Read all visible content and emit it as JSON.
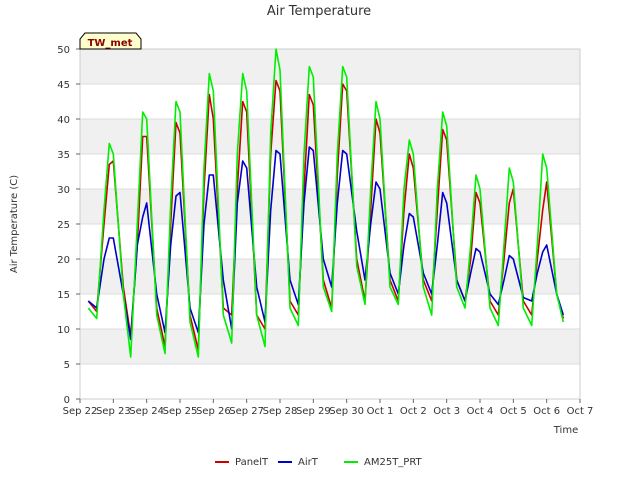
{
  "chart_data": {
    "type": "line",
    "title": "Air Temperature",
    "xlabel": "Time",
    "ylabel": "Air Temperature (C)",
    "badge": "TW_met",
    "ylim": [
      0,
      50
    ],
    "yticks": [
      0,
      5,
      10,
      15,
      20,
      25,
      30,
      35,
      40,
      45,
      50
    ],
    "xlim": [
      0,
      15
    ],
    "xtick_labels": [
      "Sep 22",
      "Sep 23",
      "Sep 24",
      "Sep 25",
      "Sep 26",
      "Sep 27",
      "Sep 28",
      "Sep 29",
      "Sep 30",
      "Oct 1",
      "Oct 2",
      "Oct 3",
      "Oct 4",
      "Oct 5",
      "Oct 6",
      "Oct 7"
    ],
    "grid": true,
    "legend_position": "bottom",
    "colors": {
      "PanelT": "#cc0000",
      "AirT": "#0000cc",
      "AM25T_PRT": "#00ee00",
      "band": "#f0f0f0",
      "badge_bg": "#ffffcc"
    },
    "series": [
      {
        "name": "PanelT",
        "x": [
          0.25,
          0.5,
          0.72,
          0.88,
          1.0,
          1.3,
          1.52,
          1.72,
          1.88,
          2.0,
          2.3,
          2.55,
          2.72,
          2.88,
          3.0,
          3.3,
          3.55,
          3.72,
          3.88,
          4.0,
          4.3,
          4.55,
          4.72,
          4.88,
          5.0,
          5.3,
          5.55,
          5.72,
          5.88,
          6.0,
          6.3,
          6.55,
          6.72,
          6.88,
          7.0,
          7.3,
          7.55,
          7.72,
          7.88,
          8.0,
          8.3,
          8.55,
          8.72,
          8.88,
          9.0,
          9.3,
          9.55,
          9.72,
          9.88,
          10.0,
          10.3,
          10.55,
          10.72,
          10.88,
          11.0,
          11.3,
          11.55,
          11.72,
          11.88,
          12.0,
          12.3,
          12.55,
          12.72,
          12.88,
          13.0,
          13.3,
          13.55,
          13.72,
          13.88,
          14.0,
          14.3,
          14.5
        ],
        "y": [
          14,
          12.5,
          25,
          33.5,
          34,
          16,
          9,
          22,
          37.5,
          37.5,
          13,
          7.5,
          25,
          39.5,
          38,
          12,
          7,
          30,
          43.5,
          40,
          13,
          12,
          30,
          42.5,
          41,
          12,
          10,
          35,
          45.5,
          44,
          14,
          12,
          30,
          43.5,
          42,
          17,
          13,
          32,
          45,
          44,
          20,
          14,
          27,
          40,
          38,
          17,
          14,
          27,
          35,
          33,
          17,
          14,
          27,
          38.5,
          37,
          17,
          14,
          20,
          29.5,
          28,
          14,
          12,
          20,
          28,
          30,
          14,
          12,
          20,
          27,
          31,
          15,
          11.5
        ]
      },
      {
        "name": "AirT",
        "x": [
          0.25,
          0.5,
          0.72,
          0.88,
          1.0,
          1.3,
          1.52,
          1.72,
          1.88,
          2.0,
          2.3,
          2.55,
          2.72,
          2.88,
          3.0,
          3.3,
          3.55,
          3.72,
          3.88,
          4.0,
          4.3,
          4.55,
          4.72,
          4.88,
          5.0,
          5.3,
          5.55,
          5.72,
          5.88,
          6.0,
          6.3,
          6.55,
          6.72,
          6.88,
          7.0,
          7.3,
          7.55,
          7.72,
          7.88,
          8.0,
          8.3,
          8.55,
          8.72,
          8.88,
          9.0,
          9.3,
          9.55,
          9.72,
          9.88,
          10.0,
          10.3,
          10.55,
          10.72,
          10.88,
          11.0,
          11.3,
          11.55,
          11.72,
          11.88,
          12.0,
          12.3,
          12.55,
          12.72,
          12.88,
          13.0,
          13.3,
          13.55,
          13.72,
          13.88,
          14.0,
          14.3,
          14.5
        ],
        "y": [
          14,
          13,
          20,
          23,
          23,
          15,
          8.5,
          22,
          26,
          28,
          15,
          9.5,
          22,
          29,
          29.5,
          13,
          9.5,
          25,
          32,
          32,
          17,
          10,
          28,
          34,
          33,
          16,
          11,
          27,
          35.5,
          35,
          17,
          13.5,
          28,
          36,
          35.5,
          20,
          16,
          28,
          35.5,
          35,
          24,
          17,
          25,
          31,
          30,
          18,
          15,
          22,
          26.5,
          26,
          18,
          15,
          22,
          29.5,
          28,
          17,
          14,
          18,
          21.5,
          21,
          15,
          13.5,
          17,
          20.5,
          20,
          14.5,
          14,
          18,
          21,
          22,
          15,
          12
        ]
      },
      {
        "name": "AM25T_PRT",
        "x": [
          0.25,
          0.5,
          0.72,
          0.88,
          1.0,
          1.3,
          1.52,
          1.72,
          1.88,
          2.0,
          2.3,
          2.55,
          2.72,
          2.88,
          3.0,
          3.3,
          3.55,
          3.72,
          3.88,
          4.0,
          4.3,
          4.55,
          4.72,
          4.88,
          5.0,
          5.3,
          5.55,
          5.72,
          5.88,
          6.0,
          6.3,
          6.55,
          6.72,
          6.88,
          7.0,
          7.3,
          7.55,
          7.72,
          7.88,
          8.0,
          8.3,
          8.55,
          8.72,
          8.88,
          9.0,
          9.3,
          9.55,
          9.72,
          9.88,
          10.0,
          10.3,
          10.55,
          10.72,
          10.88,
          11.0,
          11.3,
          11.55,
          11.72,
          11.88,
          12.0,
          12.3,
          12.55,
          12.72,
          12.88,
          13.0,
          13.3,
          13.55,
          13.72,
          13.88,
          14.0,
          14.3,
          14.5
        ],
        "y": [
          13,
          11.5,
          27,
          36.5,
          35,
          15,
          6,
          25,
          41,
          40,
          12,
          6.5,
          28,
          42.5,
          41,
          11,
          6,
          33,
          46.5,
          44,
          12,
          8,
          35,
          46.5,
          44,
          12,
          7.5,
          38,
          50,
          47,
          13,
          10.5,
          35,
          47.5,
          46,
          16,
          12.5,
          35,
          47.5,
          46,
          19,
          13.5,
          30,
          42.5,
          40,
          16,
          13.5,
          30,
          37,
          35,
          16,
          12,
          30,
          41,
          39,
          16,
          13,
          22,
          32,
          30,
          13,
          10.5,
          22,
          33,
          31,
          13,
          10.5,
          22,
          35,
          33,
          15,
          11
        ]
      }
    ]
  }
}
